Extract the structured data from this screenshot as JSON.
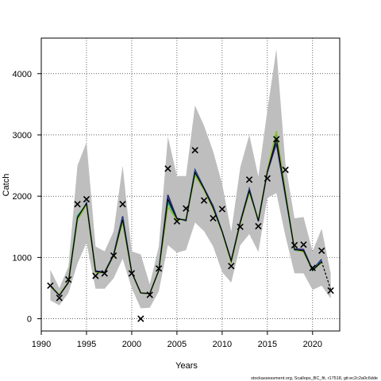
{
  "chart_data": {
    "type": "line",
    "xlabel": "Years",
    "ylabel": "Catch",
    "xlim": [
      1990,
      2023
    ],
    "ylim": [
      -200,
      4580
    ],
    "x_ticks": [
      1990,
      1995,
      2000,
      2005,
      2010,
      2015,
      2020
    ],
    "y_ticks": [
      0,
      1000,
      2000,
      3000,
      4000
    ],
    "grid": true,
    "grid_style": "dotted",
    "footer": "stockassessment.org, Scallops_BC_fit, r17518, git:ec2c2a0c6dde",
    "band_color": "#bebebe",
    "band": {
      "years": [
        1991,
        1992,
        1993,
        1994,
        1995,
        1996,
        1997,
        1998,
        1999,
        2000,
        2001,
        2002,
        2003,
        2004,
        2005,
        2006,
        2007,
        2008,
        2009,
        2010,
        2011,
        2012,
        2013,
        2014,
        2015,
        2016,
        2017,
        2018,
        2019,
        2020,
        2021,
        2022
      ],
      "upper": [
        800,
        500,
        850,
        2500,
        2880,
        1180,
        1100,
        1430,
        2500,
        1100,
        1050,
        560,
        1180,
        2970,
        2330,
        2330,
        3480,
        3150,
        2730,
        2200,
        1420,
        2470,
        3000,
        2320,
        3400,
        4400,
        2530,
        1640,
        1660,
        1100,
        1470,
        740
      ],
      "lower": [
        300,
        220,
        420,
        900,
        1240,
        490,
        490,
        660,
        980,
        500,
        170,
        180,
        450,
        1200,
        1080,
        1120,
        1570,
        1430,
        1180,
        760,
        590,
        1200,
        1380,
        1090,
        1970,
        2050,
        1350,
        740,
        740,
        470,
        540,
        330
      ]
    },
    "series": [
      {
        "color": "#2b1d73",
        "values": [
          540,
          380,
          590,
          1620,
          1890,
          780,
          760,
          1050,
          1670,
          760,
          420,
          410,
          790,
          2020,
          1640,
          1600,
          2430,
          2130,
          1840,
          1420,
          950,
          1580,
          2120,
          1590,
          2390,
          2860,
          2000,
          1140,
          1130,
          800,
          970,
          null
        ]
      },
      {
        "color": "#1f6ba8",
        "values": [
          540,
          385,
          595,
          1650,
          1880,
          770,
          750,
          1040,
          1640,
          760,
          420,
          410,
          790,
          1960,
          1630,
          1610,
          2410,
          2120,
          1820,
          1420,
          940,
          1570,
          2100,
          1600,
          2400,
          2950,
          2010,
          1130,
          1110,
          790,
          950,
          null
        ]
      },
      {
        "color": "#1fa07a",
        "values": [
          540,
          390,
          600,
          1680,
          1870,
          760,
          750,
          1030,
          1600,
          760,
          420,
          410,
          790,
          1900,
          1620,
          1620,
          2380,
          2110,
          1800,
          1410,
          930,
          1560,
          2080,
          1610,
          2410,
          3030,
          2040,
          1120,
          1100,
          790,
          930,
          null
        ]
      },
      {
        "color": "#8fbe2a",
        "values": [
          540,
          390,
          600,
          1610,
          1860,
          760,
          750,
          1030,
          1570,
          760,
          420,
          410,
          790,
          1830,
          1610,
          1620,
          2340,
          2100,
          1790,
          1410,
          920,
          1550,
          2060,
          1610,
          2420,
          3060,
          2080,
          1130,
          1090,
          800,
          910,
          null
        ]
      }
    ],
    "median": {
      "color": "#000000",
      "values": [
        540,
        380,
        595,
        1650,
        1880,
        770,
        750,
        1040,
        1620,
        760,
        420,
        410,
        790,
        1950,
        1630,
        1610,
        2390,
        2120,
        1810,
        1420,
        940,
        1570,
        2090,
        1600,
        2400,
        2940,
        2030,
        1130,
        1110,
        790,
        930,
        480
      ]
    },
    "forecast_dashed_from": 2020,
    "observed": {
      "years": [
        1991,
        1992,
        1993,
        1994,
        1995,
        1996,
        1997,
        1998,
        1999,
        2000,
        2001,
        2002,
        2003,
        2004,
        2005,
        2006,
        2007,
        2008,
        2009,
        2010,
        2011,
        2012,
        2013,
        2014,
        2015,
        2016,
        2017,
        2018,
        2019,
        2020,
        2021,
        2022
      ],
      "values": [
        540,
        340,
        640,
        1870,
        1950,
        700,
        740,
        1030,
        1870,
        740,
        0,
        390,
        820,
        2450,
        1590,
        1800,
        2750,
        1930,
        1640,
        1790,
        860,
        1500,
        2270,
        1510,
        2290,
        2930,
        2430,
        1200,
        1210,
        830,
        1110,
        460
      ]
    }
  }
}
